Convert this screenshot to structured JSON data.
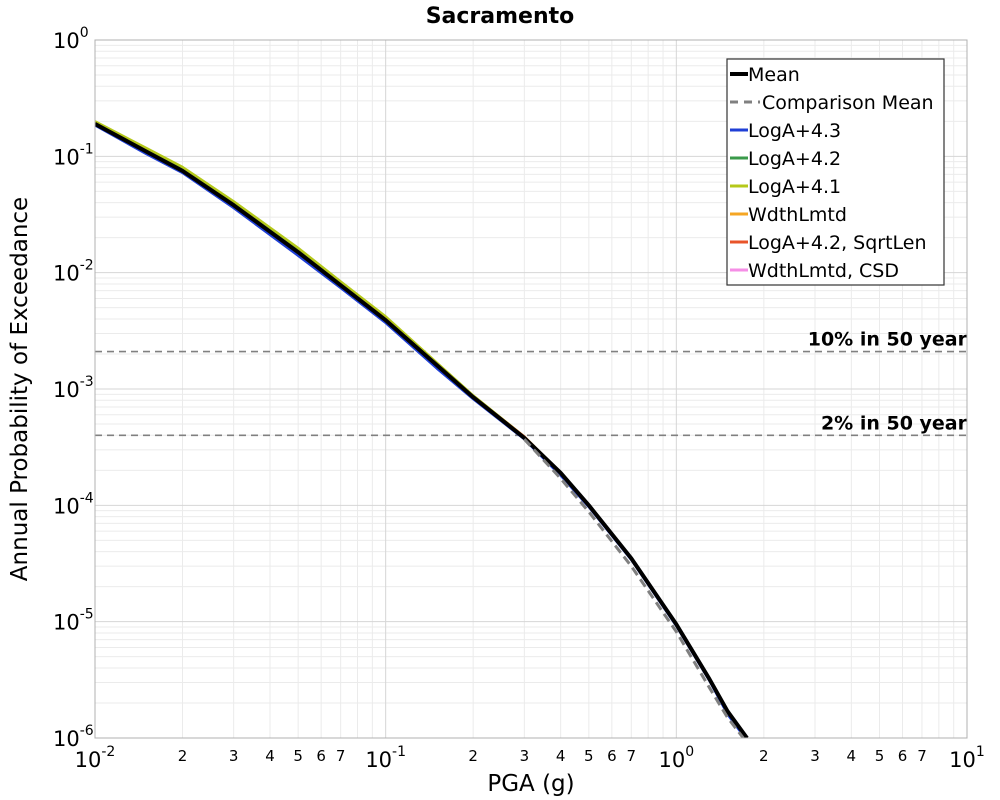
{
  "chart_data": {
    "type": "line",
    "title": "Sacramento",
    "xlabel": "PGA (g)",
    "ylabel": "Annual Probability of Exceedance",
    "xscale": "log",
    "yscale": "log",
    "xlim": [
      0.01,
      10
    ],
    "ylim": [
      1e-06,
      1
    ],
    "grid": true,
    "legend_position": "top-right",
    "x_major_ticks": [
      {
        "value": 0.01,
        "base": "10",
        "exp": "-2"
      },
      {
        "value": 0.1,
        "base": "10",
        "exp": "-1"
      },
      {
        "value": 1,
        "base": "10",
        "exp": "0"
      },
      {
        "value": 10,
        "base": "10",
        "exp": "1"
      }
    ],
    "x_minor_labels": [
      "2",
      "3",
      "4",
      "5",
      "6",
      "7"
    ],
    "y_major_ticks": [
      {
        "value": 1,
        "base": "10",
        "exp": "0"
      },
      {
        "value": 0.1,
        "base": "10",
        "exp": "-1"
      },
      {
        "value": 0.01,
        "base": "10",
        "exp": "-2"
      },
      {
        "value": 0.001,
        "base": "10",
        "exp": "-3"
      },
      {
        "value": 0.0001,
        "base": "10",
        "exp": "-4"
      },
      {
        "value": 1e-05,
        "base": "10",
        "exp": "-5"
      },
      {
        "value": 1e-06,
        "base": "10",
        "exp": "-6"
      }
    ],
    "reference_lines": [
      {
        "label": "10% in 50 year",
        "y": 0.0021,
        "color": "#808080"
      },
      {
        "label": "2% in 50 year",
        "y": 0.0004,
        "color": "#808080"
      }
    ],
    "series": [
      {
        "name": "Mean",
        "color": "#000000",
        "style": "solid",
        "width": 4,
        "x": [
          0.01,
          0.015,
          0.02,
          0.03,
          0.05,
          0.07,
          0.1,
          0.15,
          0.2,
          0.3,
          0.4,
          0.5,
          0.7,
          1.0,
          1.3,
          1.5,
          1.75
        ],
        "y": [
          0.19,
          0.11,
          0.075,
          0.038,
          0.015,
          0.0078,
          0.0039,
          0.0016,
          0.00085,
          0.00038,
          0.00019,
          0.0001,
          3.5e-05,
          9.5e-06,
          3.2e-06,
          1.7e-06,
          1e-06
        ]
      },
      {
        "name": "Comparison Mean",
        "color": "#808080",
        "style": "dashed",
        "width": 3,
        "x": [
          0.3,
          0.4,
          0.5,
          0.7,
          1.0,
          1.3,
          1.5,
          1.7
        ],
        "y": [
          0.00037,
          0.00017,
          8.8e-05,
          3e-05,
          8.2e-06,
          2.7e-06,
          1.5e-06,
          1e-06
        ]
      },
      {
        "name": "LogA+4.3",
        "color": "#1f3fd6",
        "style": "solid",
        "width": 2.5,
        "x": [
          0.01,
          0.015,
          0.02,
          0.03,
          0.05,
          0.07,
          0.1,
          0.15,
          0.2,
          0.3,
          0.4,
          0.5,
          0.7,
          1.0,
          1.3,
          1.5,
          1.75
        ],
        "y": [
          0.185,
          0.105,
          0.072,
          0.036,
          0.014,
          0.0074,
          0.0037,
          0.0015,
          0.00082,
          0.00037,
          0.00018,
          9.7e-05,
          3.4e-05,
          9.2e-06,
          3.1e-06,
          1.6e-06,
          9.5e-07
        ]
      },
      {
        "name": "LogA+4.2",
        "color": "#3a9a4a",
        "style": "solid",
        "width": 2.5,
        "x": [
          0.01,
          0.015,
          0.02,
          0.03,
          0.05,
          0.07,
          0.1,
          0.15,
          0.2,
          0.3,
          0.4,
          0.5,
          0.7,
          1.0,
          1.3,
          1.5,
          1.75
        ],
        "y": [
          0.193,
          0.112,
          0.077,
          0.039,
          0.0155,
          0.008,
          0.004,
          0.00162,
          0.00086,
          0.00038,
          0.00019,
          0.0001,
          3.5e-05,
          9.5e-06,
          3.2e-06,
          1.7e-06,
          1e-06
        ]
      },
      {
        "name": "LogA+4.1",
        "color": "#b5c81a",
        "style": "solid",
        "width": 2.5,
        "x": [
          0.01,
          0.015,
          0.02,
          0.03,
          0.05,
          0.07,
          0.1,
          0.15,
          0.2,
          0.3,
          0.4,
          0.5,
          0.7,
          1.0,
          1.3,
          1.5,
          1.75
        ],
        "y": [
          0.2,
          0.118,
          0.081,
          0.041,
          0.0163,
          0.0084,
          0.0042,
          0.00168,
          0.00088,
          0.00039,
          0.00019,
          0.0001,
          3.5e-05,
          9.5e-06,
          3.2e-06,
          1.7e-06,
          1e-06
        ]
      },
      {
        "name": "WdthLmtd",
        "color": "#f5a623",
        "style": "solid",
        "width": 2.5,
        "x": [
          0.01,
          0.015,
          0.02,
          0.03,
          0.05,
          0.07,
          0.1,
          0.15,
          0.2,
          0.3,
          0.4,
          0.5,
          0.7,
          1.0,
          1.3,
          1.5,
          1.75
        ],
        "y": [
          0.192,
          0.111,
          0.076,
          0.0385,
          0.0152,
          0.0079,
          0.004,
          0.0016,
          0.00086,
          0.00038,
          0.00019,
          0.0001,
          3.5e-05,
          9.5e-06,
          3.2e-06,
          1.7e-06,
          1e-06
        ]
      },
      {
        "name": "LogA+4.2, SqrtLen",
        "color": "#e8542a",
        "style": "solid",
        "width": 2.5,
        "x": [
          0.01,
          0.015,
          0.02,
          0.03,
          0.05,
          0.07,
          0.1,
          0.15,
          0.2,
          0.3,
          0.4,
          0.5,
          0.7,
          1.0,
          1.3,
          1.5,
          1.75
        ],
        "y": [
          0.191,
          0.11,
          0.075,
          0.038,
          0.015,
          0.0078,
          0.0039,
          0.0016,
          0.00086,
          0.00039,
          0.00019,
          0.0001,
          3.5e-05,
          9.5e-06,
          3.2e-06,
          1.7e-06,
          1e-06
        ]
      },
      {
        "name": "WdthLmtd, CSD",
        "color": "#f58ee6",
        "style": "solid",
        "width": 2.5,
        "x": [
          0.01,
          0.015,
          0.02,
          0.03,
          0.05,
          0.07,
          0.1,
          0.15,
          0.2,
          0.3,
          0.4,
          0.5,
          0.7,
          1.0,
          1.3,
          1.5,
          1.75
        ],
        "y": [
          0.19,
          0.11,
          0.075,
          0.038,
          0.015,
          0.0078,
          0.0039,
          0.0016,
          0.00085,
          0.00038,
          0.00019,
          0.0001,
          3.5e-05,
          9.5e-06,
          3.2e-06,
          1.7e-06,
          1e-06
        ]
      }
    ]
  }
}
